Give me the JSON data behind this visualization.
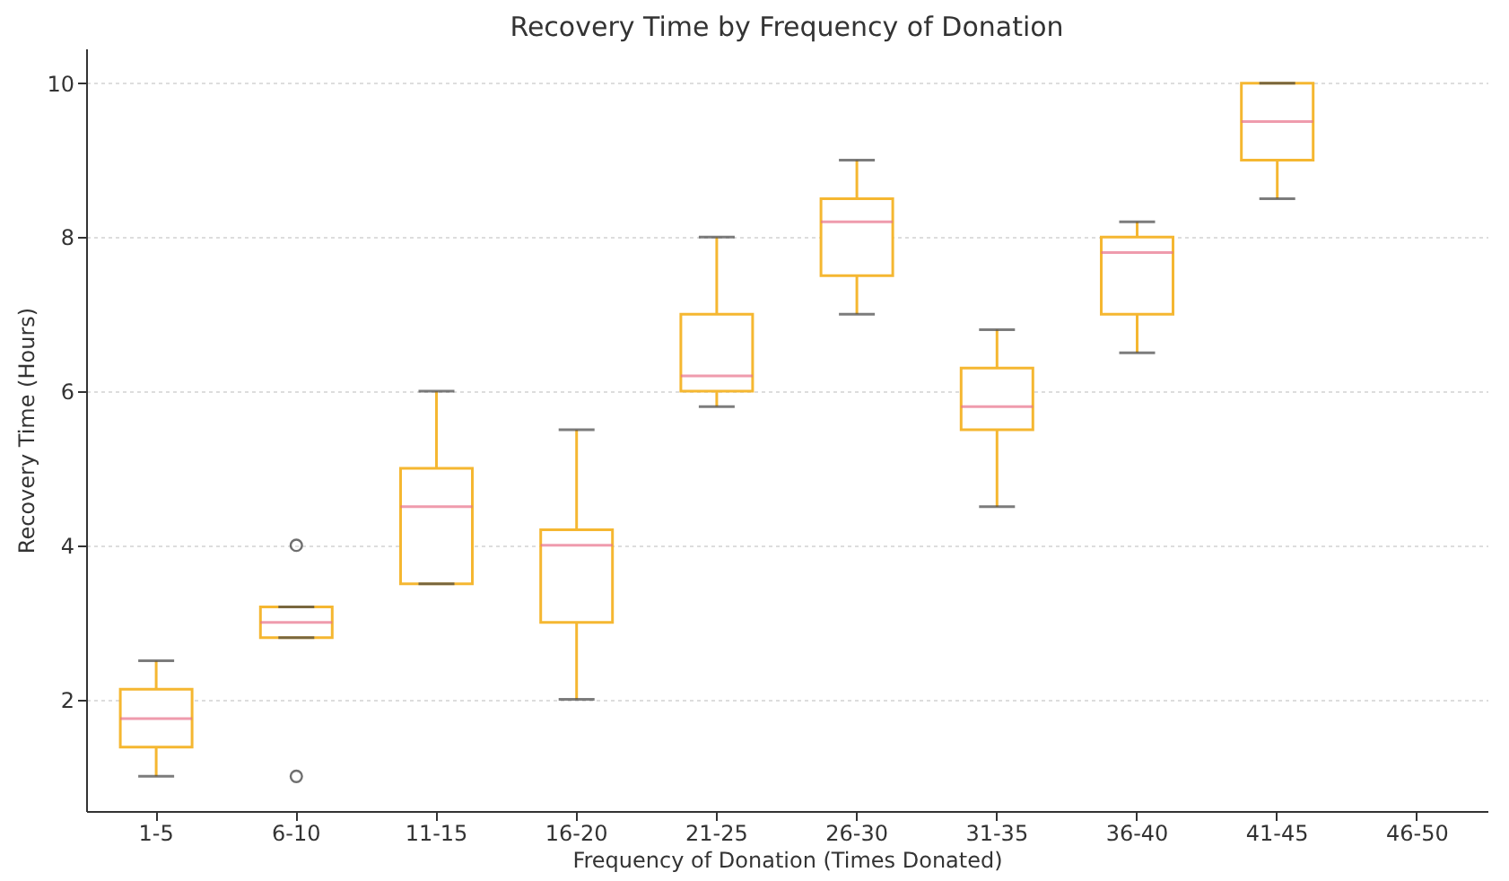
{
  "chart_data": {
    "type": "box",
    "title": "Recovery Time by Frequency of Donation",
    "xlabel": "Frequency of Donation (Times Donated)",
    "ylabel": "Recovery Time (Hours)",
    "categories": [
      "1-5",
      "6-10",
      "11-15",
      "16-20",
      "21-25",
      "26-30",
      "31-35",
      "36-40",
      "41-45",
      "46-50"
    ],
    "series": [
      {
        "color": "#f5b731",
        "boxes": [
          {
            "low": 1.0,
            "q1": 1.38,
            "median": 1.75,
            "q3": 2.13,
            "high": 2.5
          },
          {
            "low": 2.8,
            "q1": 2.8,
            "median": 3.0,
            "q3": 3.2,
            "high": 3.2,
            "outliers": [
              4.0,
              1.0
            ]
          },
          {
            "low": 3.5,
            "q1": 3.5,
            "median": 4.5,
            "q3": 5.0,
            "high": 6.0
          },
          {
            "low": 2.0,
            "q1": 3.0,
            "median": 4.0,
            "q3": 4.2,
            "high": 5.5
          },
          {
            "low": 5.8,
            "q1": 6.0,
            "median": 6.2,
            "q3": 7.0,
            "high": 8.0
          },
          {
            "low": 7.0,
            "q1": 7.5,
            "median": 8.2,
            "q3": 8.5,
            "high": 9.0
          },
          {
            "low": 4.5,
            "q1": 5.5,
            "median": 5.8,
            "q3": 6.3,
            "high": 6.8
          },
          {
            "low": 6.5,
            "q1": 7.0,
            "median": 7.8,
            "q3": 8.0,
            "high": 8.2
          },
          {
            "low": 8.5,
            "q1": 9.0,
            "median": 9.5,
            "q3": 10.0,
            "high": 10.0
          },
          null
        ]
      }
    ],
    "ylim": [
      0.55,
      10.45
    ],
    "yticks": [
      2,
      4,
      6,
      8,
      10
    ],
    "grid": "y",
    "legend": false
  }
}
